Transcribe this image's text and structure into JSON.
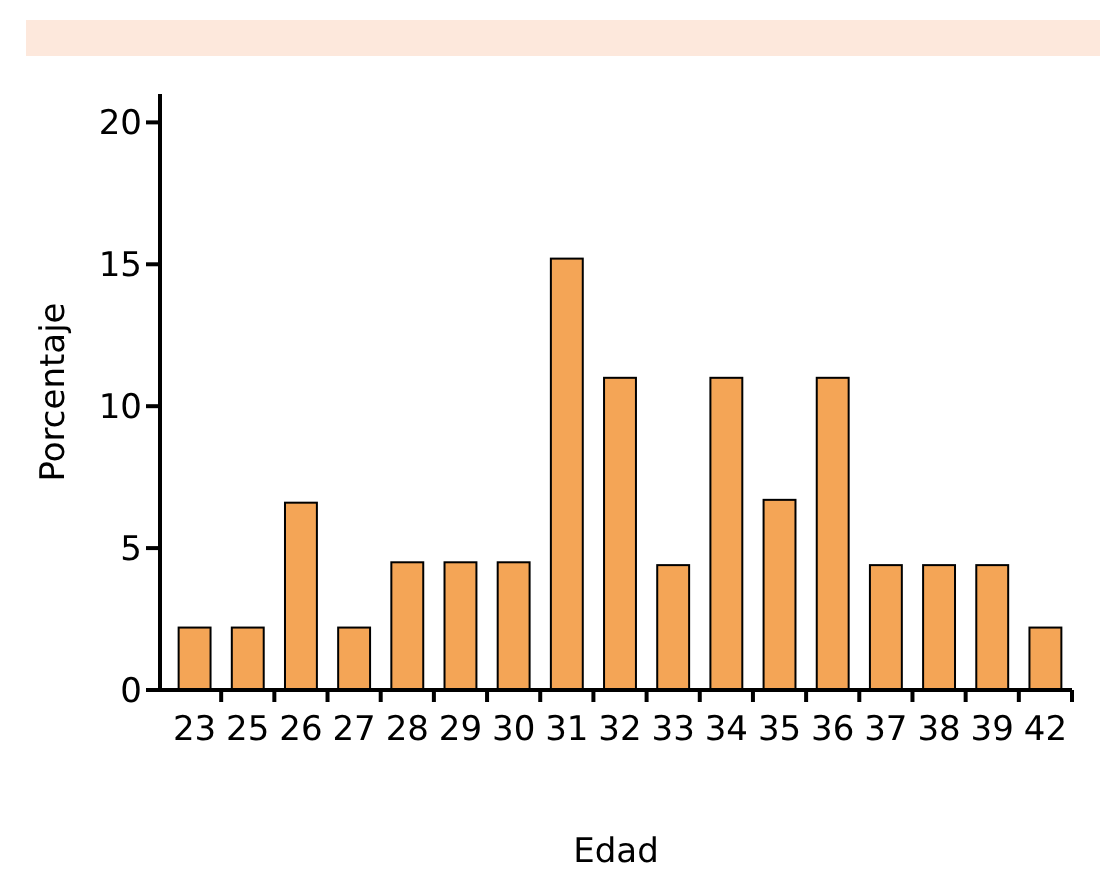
{
  "chart_data": {
    "type": "bar",
    "xlabel": "Edad",
    "ylabel": "Porcentaje",
    "categories": [
      "23",
      "25",
      "26",
      "27",
      "28",
      "29",
      "30",
      "31",
      "32",
      "33",
      "34",
      "35",
      "36",
      "37",
      "38",
      "39",
      "42"
    ],
    "values": [
      2.2,
      2.2,
      6.6,
      2.2,
      4.5,
      4.5,
      4.5,
      15.2,
      11,
      4.4,
      11,
      6.7,
      11,
      4.4,
      4.4,
      4.4,
      2.2
    ],
    "color": "#f4a556",
    "ylim": [
      0,
      21
    ],
    "yticks": [
      0,
      5,
      10,
      15,
      20
    ],
    "grid": false
  }
}
